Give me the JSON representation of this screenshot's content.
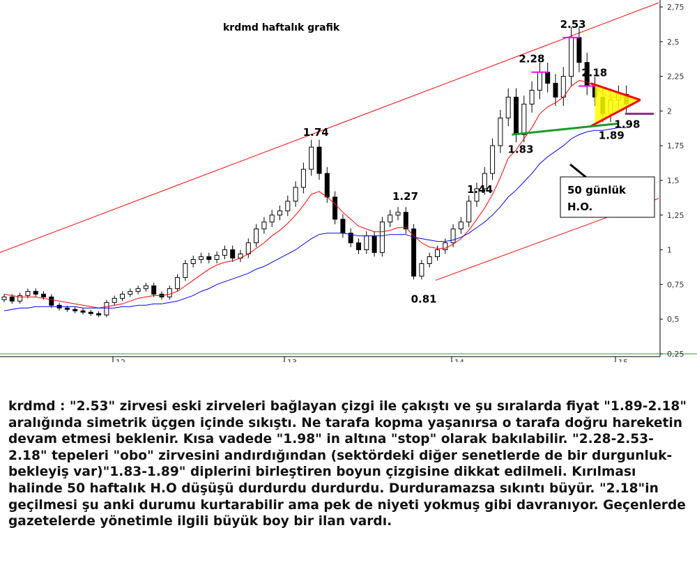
{
  "chart_data": {
    "type": "candlestick",
    "title": "krdmd haftalık grafik",
    "y_ticks": [
      "2,75",
      "2,5",
      "2,25",
      "2",
      "1,75",
      "1,5",
      "1,25",
      "1",
      "0,75",
      "0,5",
      "0,25"
    ],
    "ylim": [
      0.25,
      2.75
    ],
    "x_ticks": [
      "12",
      "13",
      "14",
      "15"
    ],
    "grid": false,
    "series": [
      {
        "name": "close",
        "color": "#000000",
        "values": [
          0.66,
          0.63,
          0.67,
          0.7,
          0.68,
          0.66,
          0.6,
          0.58,
          0.57,
          0.56,
          0.55,
          0.54,
          0.53,
          0.62,
          0.65,
          0.68,
          0.7,
          0.72,
          0.74,
          0.68,
          0.66,
          0.72,
          0.8,
          0.9,
          0.93,
          0.95,
          0.93,
          0.96,
          1.0,
          0.94,
          0.97,
          1.05,
          1.15,
          1.2,
          1.25,
          1.28,
          1.35,
          1.45,
          1.58,
          1.74,
          1.55,
          1.38,
          1.22,
          1.12,
          1.05,
          1.0,
          1.1,
          0.98,
          1.2,
          1.25,
          1.27,
          1.15,
          0.81,
          0.9,
          0.95,
          1.0,
          1.05,
          1.15,
          1.2,
          1.35,
          1.44,
          1.55,
          1.75,
          1.95,
          2.1,
          1.83,
          2.05,
          2.15,
          2.28,
          2.2,
          2.1,
          2.25,
          2.53,
          2.35,
          2.18,
          2.1,
          1.98,
          2.08,
          2.12,
          2.05
        ]
      },
      {
        "name": "",
        "color": "#ff0000",
        "values": [
          0.68,
          0.67,
          0.66,
          0.66,
          0.66,
          0.65,
          0.64,
          0.63,
          0.62,
          0.61,
          0.6,
          0.59,
          0.58,
          0.59,
          0.6,
          0.61,
          0.63,
          0.65,
          0.66,
          0.67,
          0.67,
          0.68,
          0.7,
          0.74,
          0.78,
          0.82,
          0.86,
          0.89,
          0.91,
          0.92,
          0.94,
          0.97,
          1.01,
          1.05,
          1.1,
          1.14,
          1.19,
          1.25,
          1.32,
          1.4,
          1.42,
          1.38,
          1.33,
          1.27,
          1.22,
          1.17,
          1.15,
          1.13,
          1.13,
          1.14,
          1.16,
          1.16,
          1.1,
          1.05,
          1.02,
          1.01,
          1.01,
          1.04,
          1.08,
          1.14,
          1.22,
          1.3,
          1.4,
          1.52,
          1.66,
          1.72,
          1.8,
          1.88,
          1.98,
          2.03,
          2.06,
          2.1,
          2.18,
          2.22,
          2.21,
          2.18,
          2.12,
          2.1,
          2.1,
          2.09
        ]
      },
      {
        "name": "",
        "color": "#0000ff",
        "values": [
          0.56,
          0.57,
          0.58,
          0.58,
          0.59,
          0.59,
          0.59,
          0.59,
          0.59,
          0.59,
          0.58,
          0.58,
          0.58,
          0.58,
          0.58,
          0.59,
          0.59,
          0.6,
          0.6,
          0.61,
          0.61,
          0.62,
          0.63,
          0.65,
          0.67,
          0.7,
          0.72,
          0.75,
          0.77,
          0.79,
          0.81,
          0.83,
          0.86,
          0.88,
          0.91,
          0.94,
          0.97,
          1.0,
          1.04,
          1.08,
          1.11,
          1.12,
          1.12,
          1.12,
          1.11,
          1.1,
          1.1,
          1.1,
          1.1,
          1.11,
          1.11,
          1.11,
          1.09,
          1.08,
          1.07,
          1.06,
          1.06,
          1.07,
          1.09,
          1.12,
          1.16,
          1.2,
          1.25,
          1.31,
          1.38,
          1.43,
          1.49,
          1.55,
          1.62,
          1.67,
          1.71,
          1.75,
          1.8,
          1.83,
          1.85,
          1.86,
          1.86,
          1.87,
          1.88,
          1.88
        ]
      }
    ],
    "annotations": [
      {
        "text": "1.74",
        "x": 39,
        "y": 1.74
      },
      {
        "text": "1.27",
        "x": 50,
        "y": 1.27
      },
      {
        "text": "0.81",
        "x": 52,
        "y": 0.81
      },
      {
        "text": "1.44",
        "x": 60,
        "y": 1.44
      },
      {
        "text": "1.83",
        "x": 65,
        "y": 1.83
      },
      {
        "text": "2.28",
        "x": 68,
        "y": 2.28
      },
      {
        "text": "2.53",
        "x": 72,
        "y": 2.53
      },
      {
        "text": "2.18",
        "x": 74,
        "y": 2.18
      },
      {
        "text": "1.89",
        "x": 76,
        "y": 1.89
      },
      {
        "text": "1.98",
        "x": 78,
        "y": 1.98
      }
    ],
    "callout": "50 günlük\nH.O."
  },
  "commentary": "krdmd : \"2.53\" zirvesi eski zirveleri bağlayan çizgi ile çakıştı ve şu sıralarda fiyat \"1.89-2.18\" aralığında simetrik üçgen içinde sıkıştı. Ne tarafa kopma yaşanırsa o tarafa doğru hareketin devam etmesi beklenir. Kısa vadede \"1.98\" in altına \"stop\" olarak bakılabilir. \"2.28-2.53-2.18\" tepeleri \"obo\" zirvesini andırdığından (sektördeki diğer senetlerde de bir durgunluk-bekleyiş var)\"1.83-1.89\" diplerini birleştiren boyun çizgisine dikkat edilmeli. Kırılması halinde 50 haftalık H.O düşüşü durdurdu durdurdu. Durduramazsa sıkıntı büyür. \"2.18\"in geçilmesi şu anki durumu kurtarabilir ama pek de niyeti yokmuş gibi davranıyor. Geçenlerde gazetelerde yönetimle ilgili büyük boy bir ilan vardı."
}
